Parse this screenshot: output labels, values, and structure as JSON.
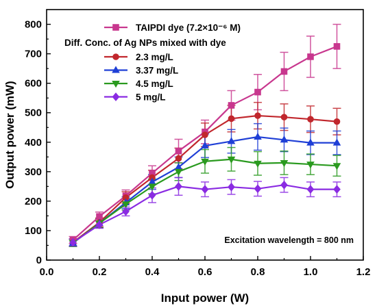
{
  "chart_data": {
    "type": "line",
    "title": "",
    "xlabel": "Input power (W)",
    "ylabel": "Output power (mW)",
    "xlim": [
      0.0,
      1.2
    ],
    "ylim": [
      0,
      850
    ],
    "xticks": [
      0.0,
      0.2,
      0.4,
      0.6,
      0.8,
      1.0,
      1.2
    ],
    "xtick_labels": [
      "0.0",
      "0.2",
      "0.4",
      "0.6",
      "0.8",
      "1.0",
      "1.2"
    ],
    "yticks": [
      0,
      100,
      200,
      300,
      400,
      500,
      600,
      700,
      800
    ],
    "ytick_labels": [
      "0",
      "100",
      "200",
      "300",
      "400",
      "500",
      "600",
      "700",
      "800"
    ],
    "grid": false,
    "legend_position": "top-left",
    "legend_subtitle": "Diff. Conc. of Ag NPs mixed with dye",
    "annotation": "Excitation wavelength = 800 nm",
    "x": [
      0.1,
      0.2,
      0.3,
      0.4,
      0.5,
      0.6,
      0.7,
      0.8,
      0.9,
      1.0,
      1.1
    ],
    "series": [
      {
        "name": "TAIPDI dye (7.2×10⁻⁶ M)",
        "color": "#c8378e",
        "marker": "square",
        "values": [
          68,
          148,
          218,
          295,
          370,
          435,
          525,
          570,
          640,
          690,
          725
        ],
        "errors": [
          12,
          15,
          20,
          25,
          40,
          40,
          50,
          60,
          65,
          70,
          75
        ]
      },
      {
        "name": "2.3 mg/L",
        "color": "#c1272d",
        "marker": "circle",
        "values": [
          60,
          128,
          212,
          280,
          345,
          425,
          480,
          490,
          485,
          478,
          470
        ],
        "errors": [
          12,
          15,
          20,
          25,
          35,
          40,
          45,
          45,
          45,
          45,
          45
        ]
      },
      {
        "name": "3.37 mg/L",
        "color": "#1f3fd6",
        "marker": "triangle-up",
        "values": [
          58,
          125,
          195,
          265,
          315,
          388,
          403,
          418,
          408,
          398,
          398
        ],
        "errors": [
          12,
          15,
          20,
          25,
          35,
          40,
          40,
          45,
          40,
          40,
          40
        ]
      },
      {
        "name": "4.5 mg/L",
        "color": "#2a9a1f",
        "marker": "triangle-down",
        "values": [
          58,
          125,
          190,
          250,
          300,
          335,
          342,
          328,
          330,
          325,
          320
        ],
        "errors": [
          12,
          15,
          20,
          25,
          30,
          40,
          40,
          40,
          40,
          35,
          35
        ]
      },
      {
        "name": "5 mg/L",
        "color": "#8a2be2",
        "marker": "diamond",
        "values": [
          60,
          120,
          165,
          220,
          250,
          240,
          248,
          242,
          255,
          240,
          240
        ],
        "errors": [
          12,
          12,
          15,
          25,
          30,
          25,
          25,
          25,
          25,
          25,
          25
        ]
      }
    ]
  }
}
